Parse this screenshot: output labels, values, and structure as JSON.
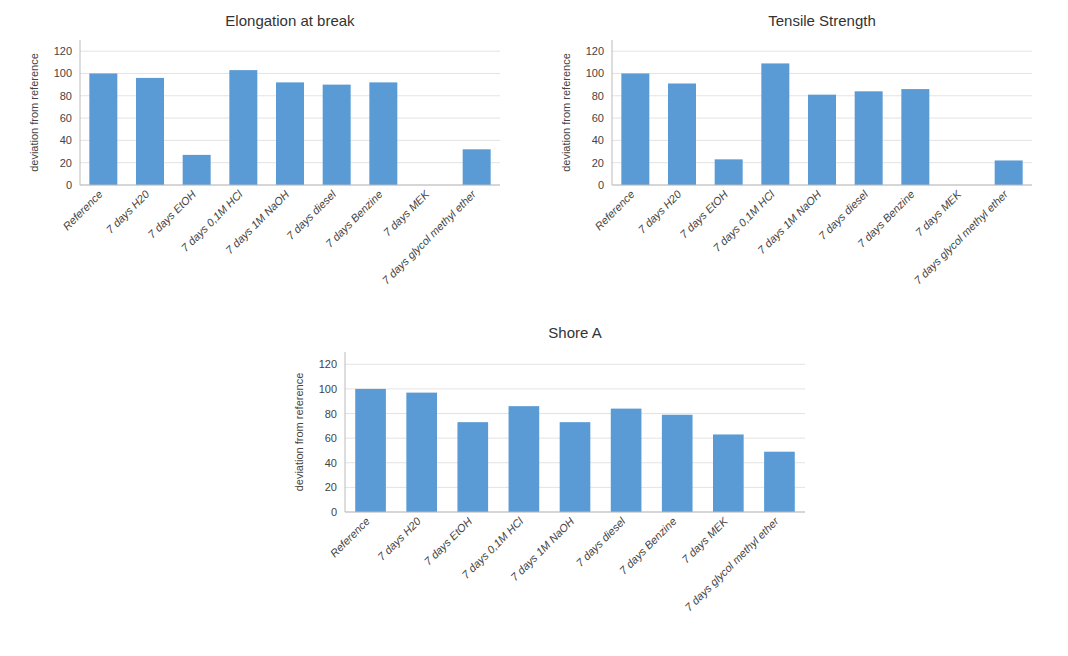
{
  "chart_data": [
    {
      "type": "bar",
      "title": "Elongation at break",
      "categories": [
        "Reference",
        "7 days H20",
        "7 days EtOH",
        "7 days 0,1M HCl",
        "7 days 1M NaOH",
        "7 days diesel",
        "7 days Benzine",
        "7 days MEK",
        "7 days glycol methyl ether"
      ],
      "values": [
        100,
        96,
        27,
        103,
        92,
        90,
        92,
        0,
        32
      ],
      "color": "#5B9BD5",
      "y_label": "deviation from reference",
      "ylim": [
        0,
        130
      ],
      "yticks": [
        0,
        20,
        40,
        60,
        80,
        100,
        120
      ],
      "grid": true
    },
    {
      "type": "bar",
      "title": "Tensile Strength",
      "categories": [
        "Reference",
        "7 days H20",
        "7 days EtOH",
        "7 days 0,1M HCl",
        "7 days 1M NaOH",
        "7 days diesel",
        "7 days Benzine",
        "7 days MEK",
        "7 days glycol methyl ether"
      ],
      "values": [
        100,
        91,
        23,
        109,
        81,
        84,
        86,
        0,
        22
      ],
      "color": "#5B9BD5",
      "y_label": "deviation from reference",
      "ylim": [
        0,
        130
      ],
      "yticks": [
        0,
        20,
        40,
        60,
        80,
        100,
        120
      ],
      "grid": true
    },
    {
      "type": "bar",
      "title": "Shore A",
      "categories": [
        "Reference",
        "7 days H20",
        "7 days EtOH",
        "7 days 0,1M HCl",
        "7 days 1M NaOH",
        "7 days diesel",
        "7 days Benzine",
        "7 days MEK",
        "7 days glycol methyl ether"
      ],
      "values": [
        100,
        97,
        73,
        86,
        73,
        84,
        79,
        63,
        49
      ],
      "color": "#5B9BD5",
      "y_label": "deviation from reference",
      "ylim": [
        0,
        130
      ],
      "yticks": [
        0,
        20,
        40,
        60,
        80,
        100,
        120
      ],
      "grid": true
    }
  ]
}
